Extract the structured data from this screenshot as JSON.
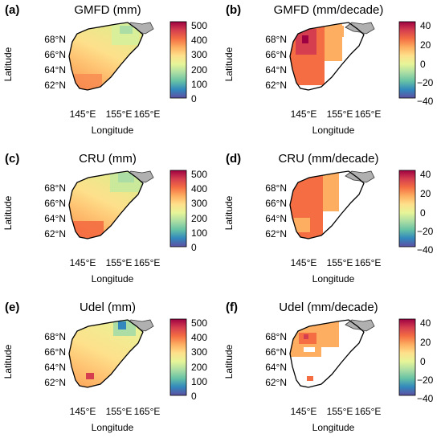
{
  "panels": [
    {
      "letter": "(a)",
      "title": "GMFD (mm)",
      "kind": "precip",
      "cbar_ticks": [
        "500",
        "400",
        "300",
        "200",
        "100",
        "0"
      ]
    },
    {
      "letter": "(b)",
      "title": "GMFD (mm/decade)",
      "kind": "trend",
      "cbar_ticks": [
        "40",
        "20",
        "0",
        "−20",
        "−40"
      ]
    },
    {
      "letter": "(c)",
      "title": "CRU (mm)",
      "kind": "precip",
      "cbar_ticks": [
        "500",
        "400",
        "300",
        "200",
        "100",
        "0"
      ]
    },
    {
      "letter": "(d)",
      "title": "CRU (mm/decade)",
      "kind": "trend",
      "cbar_ticks": [
        "40",
        "20",
        "0",
        "−20",
        "−40"
      ]
    },
    {
      "letter": "(e)",
      "title": "Udel (mm)",
      "kind": "precip",
      "cbar_ticks": [
        "500",
        "400",
        "300",
        "200",
        "100",
        "0"
      ]
    },
    {
      "letter": "(f)",
      "title": "Udel (mm/decade)",
      "kind": "trend",
      "cbar_ticks": [
        "40",
        "20",
        "0",
        "−20",
        "−40"
      ]
    }
  ],
  "axes": {
    "ylabel": "Latitude",
    "xlabel": "Longitude",
    "lat_ticks": [
      "68°N",
      "66°N",
      "64°N",
      "62°N"
    ],
    "lon_ticks": [
      "145°E",
      "155°E",
      "165°E"
    ]
  },
  "colors": {
    "precip_ramp": [
      "#5e4fa2",
      "#3288bd",
      "#66c2a5",
      "#abdda4",
      "#e6f598",
      "#fee08b",
      "#fdae61",
      "#f46d43",
      "#d53e4f",
      "#9e0142"
    ],
    "trend_ramp": [
      "#5e4fa2",
      "#3288bd",
      "#66c2a5",
      "#abdda4",
      "#e6f598",
      "#fee08b",
      "#fdae61",
      "#f46d43",
      "#d53e4f",
      "#9e0142"
    ],
    "coast_grey": "#b0b0b0"
  }
}
